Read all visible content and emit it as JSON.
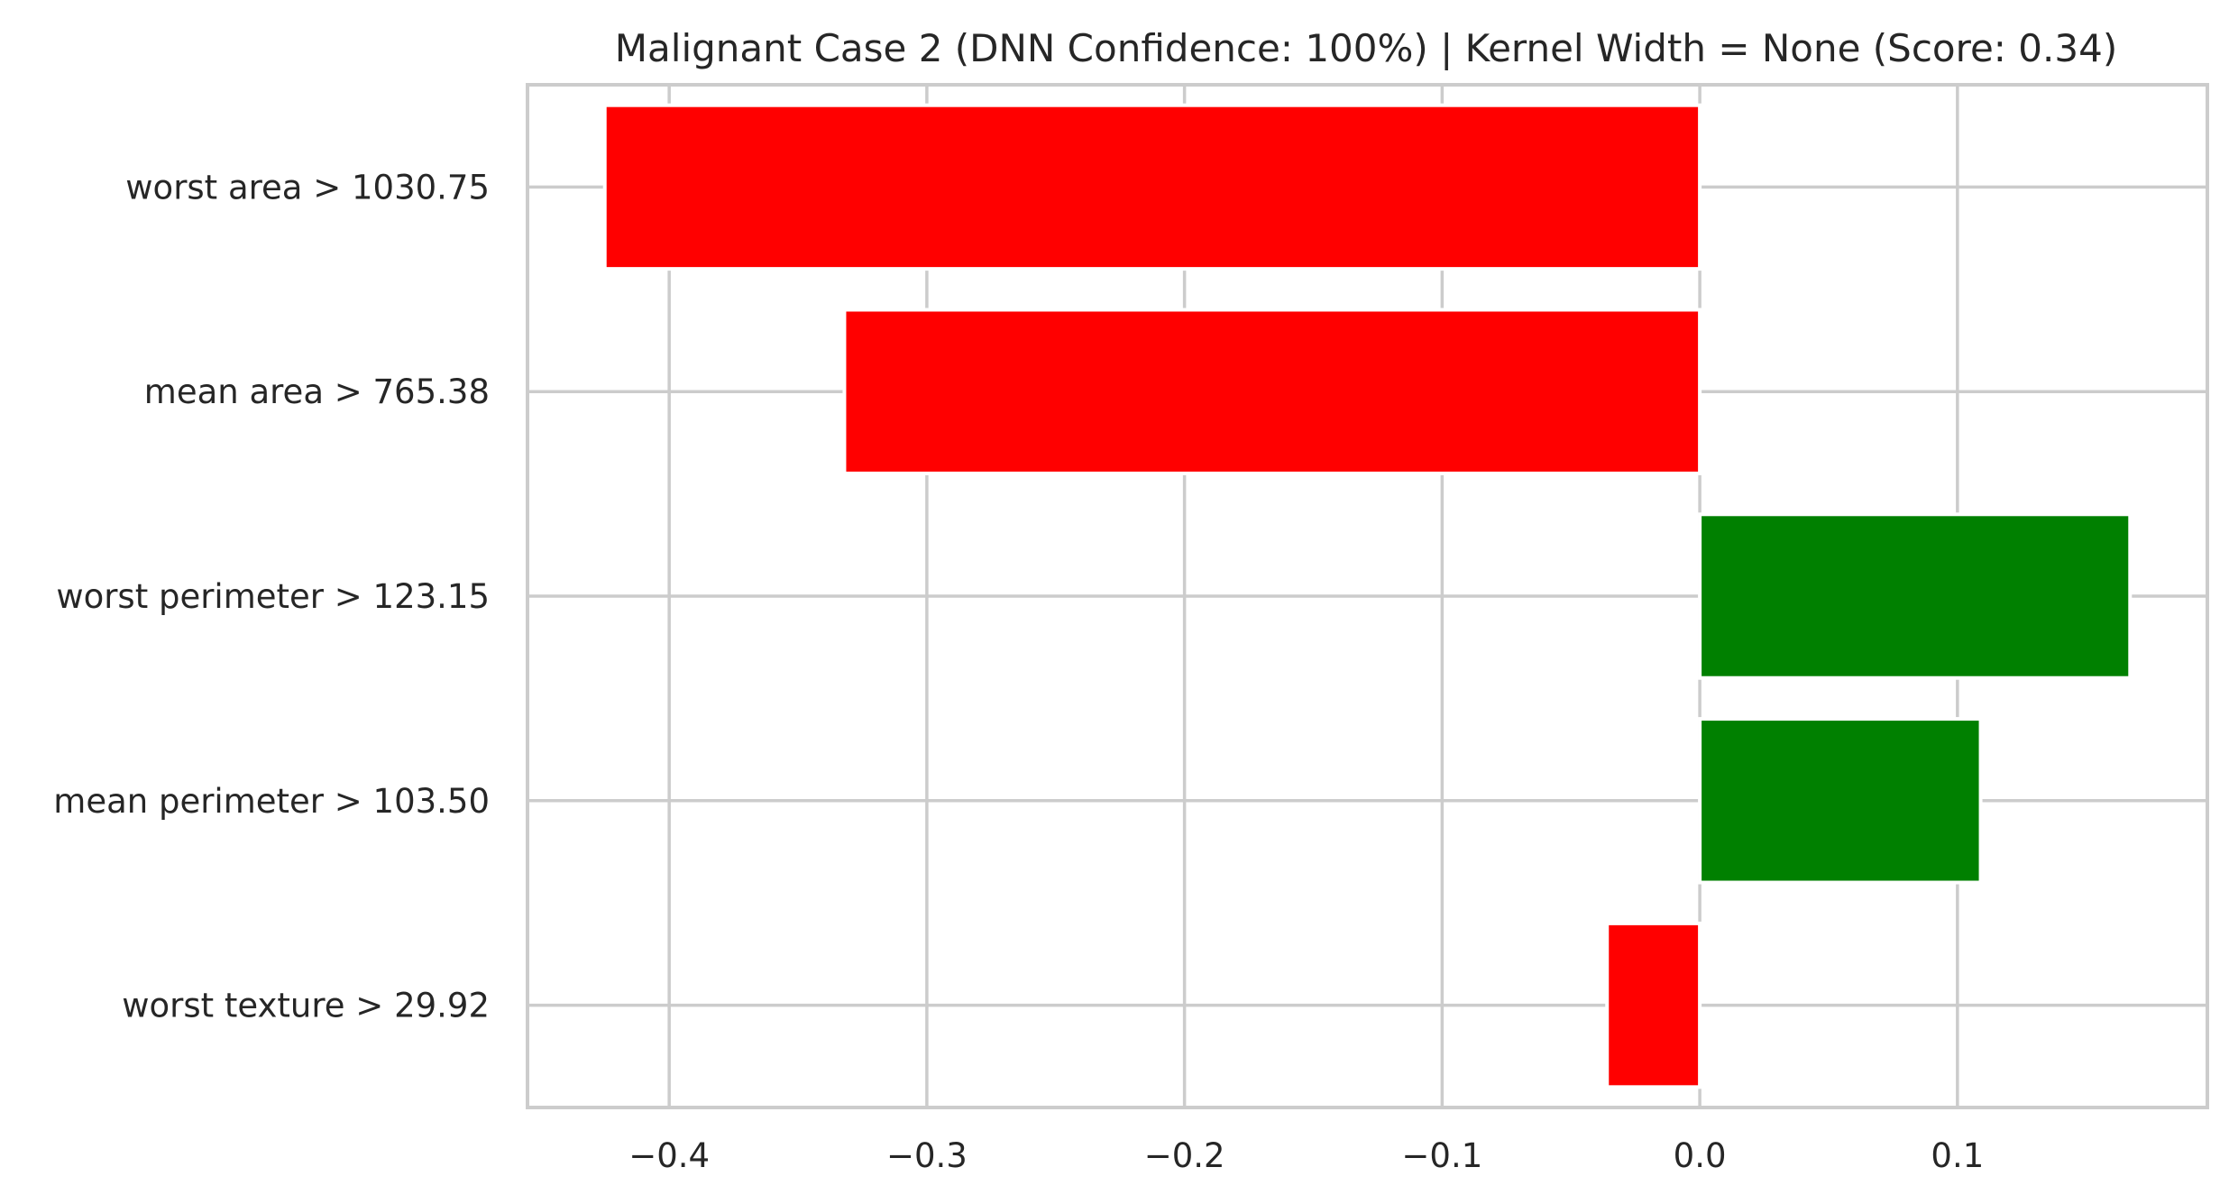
{
  "chart_data": {
    "type": "bar",
    "orientation": "horizontal",
    "title": "Malignant Case 2 (DNN Confidence: 100%) | Kernel Width = None (Score: 0.34)",
    "xlabel": "",
    "ylabel": "",
    "categories": [
      "worst area > 1030.75",
      "mean area > 765.38",
      "worst perimeter > 123.15",
      "mean perimeter > 103.50",
      "worst texture > 29.92"
    ],
    "values": [
      -0.425,
      -0.332,
      0.167,
      0.109,
      -0.036
    ],
    "bar_colors": [
      "#ff0000",
      "#ff0000",
      "#008000",
      "#008000",
      "#ff0000"
    ],
    "positive_color": "#008000",
    "negative_color": "#ff0000",
    "xlim": [
      -0.455,
      0.197
    ],
    "xticks": [
      -0.4,
      -0.3,
      -0.2,
      -0.1,
      0.0,
      0.1
    ],
    "xtick_labels": [
      "−0.4",
      "−0.3",
      "−0.2",
      "−0.1",
      "0.0",
      "0.1"
    ],
    "grid": true,
    "legend": "none"
  }
}
